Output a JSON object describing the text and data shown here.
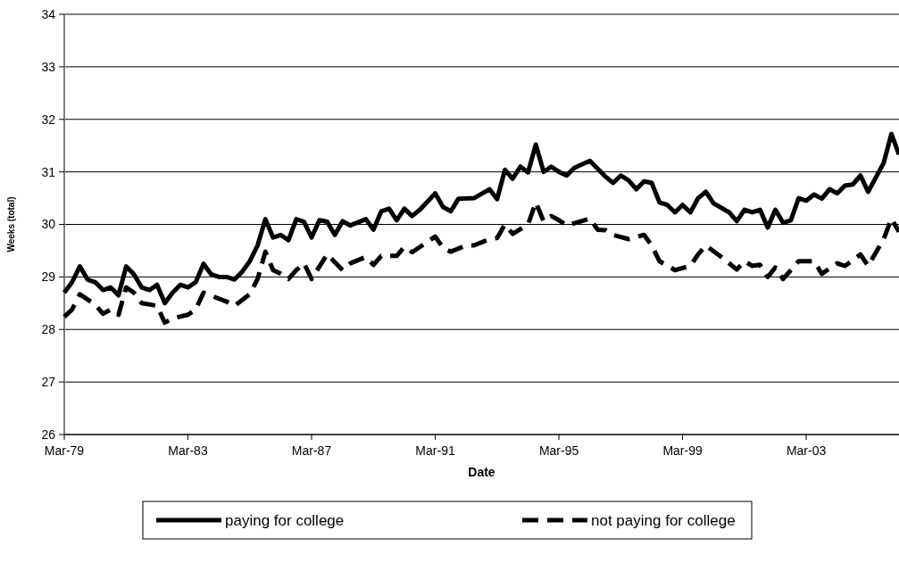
{
  "chart_data": {
    "type": "line",
    "xlabel": "Date",
    "ylabel": "Weeks (total)",
    "xlim": [
      "1979-03",
      "2006-03"
    ],
    "xticks": [
      {
        "value": "1979-03",
        "label": "Mar-79"
      },
      {
        "value": "1983-03",
        "label": "Mar-83"
      },
      {
        "value": "1987-03",
        "label": "Mar-87"
      },
      {
        "value": "1991-03",
        "label": "Mar-91"
      },
      {
        "value": "1995-03",
        "label": "Mar-95"
      },
      {
        "value": "1999-03",
        "label": "Mar-99"
      },
      {
        "value": "2003-03",
        "label": "Mar-03"
      }
    ],
    "ylim": [
      26,
      34
    ],
    "yticks": [
      26,
      27,
      28,
      29,
      30,
      31,
      32,
      33,
      34
    ],
    "grid": "y",
    "legend": "bottom",
    "series": [
      {
        "name": "paying for college",
        "color": "#000000",
        "line_style": "solid",
        "x": [
          "1979-03",
          "1979-06",
          "1979-09",
          "1979-12",
          "1980-03",
          "1980-06",
          "1980-09",
          "1980-12",
          "1981-03",
          "1981-06",
          "1981-09",
          "1981-12",
          "1982-03",
          "1982-06",
          "1982-09",
          "1982-12",
          "1983-03",
          "1983-06",
          "1983-09",
          "1983-12",
          "1984-03",
          "1984-06",
          "1984-09",
          "1984-12",
          "1985-03",
          "1985-06",
          "1985-09",
          "1985-12",
          "1986-03",
          "1986-06",
          "1986-09",
          "1986-12",
          "1987-03",
          "1987-06",
          "1987-09",
          "1987-12",
          "1988-03",
          "1988-06",
          "1988-12",
          "1989-03",
          "1989-06",
          "1989-09",
          "1989-12",
          "1990-03",
          "1990-06",
          "1990-09",
          "1991-03",
          "1991-06",
          "1991-09",
          "1991-12",
          "1992-06",
          "1992-12",
          "1993-03",
          "1993-06",
          "1993-09",
          "1993-12",
          "1994-03",
          "1994-06",
          "1994-09",
          "1994-12",
          "1995-03",
          "1995-06",
          "1995-09",
          "1996-03",
          "1996-09",
          "1996-12",
          "1997-03",
          "1997-06",
          "1997-09",
          "1997-12",
          "1998-03",
          "1998-06",
          "1998-09",
          "1998-12",
          "1999-03",
          "1999-06",
          "1999-09",
          "1999-12",
          "2000-03",
          "2000-09",
          "2000-12",
          "2001-03",
          "2001-06",
          "2001-09",
          "2001-12",
          "2002-03",
          "2002-06",
          "2002-09",
          "2002-12",
          "2003-03",
          "2003-06",
          "2003-09",
          "2003-12",
          "2004-03",
          "2004-06",
          "2004-09",
          "2004-12",
          "2005-03",
          "2005-09",
          "2005-12",
          "2006-03"
        ],
        "values": [
          28.7,
          28.9,
          29.2,
          28.95,
          28.9,
          28.75,
          28.8,
          28.65,
          29.2,
          29.05,
          28.8,
          28.75,
          28.85,
          28.5,
          28.7,
          28.85,
          28.8,
          28.9,
          29.25,
          29.05,
          29.0,
          29.0,
          28.95,
          29.1,
          29.3,
          29.6,
          30.1,
          29.75,
          29.8,
          29.7,
          30.1,
          30.05,
          29.75,
          30.08,
          30.05,
          29.8,
          30.06,
          29.98,
          30.1,
          29.9,
          30.25,
          30.3,
          30.08,
          30.3,
          30.16,
          30.28,
          30.59,
          30.33,
          30.25,
          30.49,
          30.5,
          30.67,
          30.48,
          31.04,
          30.87,
          31.1,
          30.99,
          31.52,
          31.0,
          31.1,
          31.0,
          30.93,
          31.08,
          31.21,
          30.91,
          30.79,
          30.93,
          30.84,
          30.67,
          30.82,
          30.79,
          30.42,
          30.37,
          30.23,
          30.37,
          30.23,
          30.5,
          30.62,
          30.4,
          30.23,
          30.06,
          30.28,
          30.23,
          30.28,
          29.94,
          30.28,
          30.03,
          30.08,
          30.5,
          30.45,
          30.57,
          30.49,
          30.67,
          30.59,
          30.74,
          30.76,
          30.93,
          30.62,
          31.17,
          31.72,
          31.33
        ]
      },
      {
        "name": "not paying for college",
        "color": "#000000",
        "line_style": "dashed",
        "x": [
          "1979-03",
          "1979-06",
          "1979-09",
          "1980-03",
          "1980-06",
          "1980-09",
          "1980-12",
          "1981-03",
          "1981-06",
          "1981-09",
          "1982-03",
          "1982-06",
          "1982-09",
          "1983-03",
          "1983-06",
          "1983-09",
          "1984-06",
          "1984-09",
          "1985-03",
          "1985-06",
          "1985-09",
          "1985-12",
          "1986-03",
          "1986-06",
          "1986-09",
          "1986-12",
          "1987-03",
          "1987-09",
          "1988-03",
          "1988-06",
          "1988-12",
          "1989-03",
          "1989-06",
          "1989-12",
          "1990-03",
          "1990-06",
          "1991-03",
          "1991-06",
          "1991-09",
          "1992-03",
          "1992-06",
          "1992-12",
          "1993-03",
          "1993-06",
          "1993-09",
          "1994-03",
          "1994-06",
          "1994-09",
          "1994-12",
          "1995-03",
          "1995-06",
          "1996-03",
          "1996-06",
          "1996-09",
          "1996-12",
          "1997-06",
          "1997-12",
          "1998-03",
          "1998-06",
          "1998-12",
          "1999-06",
          "1999-09",
          "1999-12",
          "2000-06",
          "2000-12",
          "2001-03",
          "2001-06",
          "2001-09",
          "2001-12",
          "2002-03",
          "2002-06",
          "2002-12",
          "2003-06",
          "2003-09",
          "2004-03",
          "2004-06",
          "2004-12",
          "2005-03",
          "2005-09",
          "2005-12",
          "2006-03"
        ],
        "values": [
          28.24,
          28.38,
          28.67,
          28.47,
          28.3,
          28.38,
          28.28,
          28.8,
          28.7,
          28.5,
          28.45,
          28.13,
          28.21,
          28.28,
          28.38,
          28.7,
          28.53,
          28.45,
          28.67,
          28.96,
          29.48,
          29.13,
          29.06,
          28.96,
          29.13,
          29.26,
          28.96,
          29.43,
          29.13,
          29.26,
          29.38,
          29.23,
          29.4,
          29.4,
          29.57,
          29.47,
          29.77,
          29.55,
          29.48,
          29.6,
          29.6,
          29.72,
          29.74,
          30.0,
          29.82,
          30.0,
          30.42,
          30.06,
          30.16,
          30.08,
          29.98,
          30.11,
          29.9,
          29.89,
          29.8,
          29.72,
          29.8,
          29.6,
          29.3,
          29.13,
          29.21,
          29.43,
          29.6,
          29.38,
          29.14,
          29.3,
          29.21,
          29.23,
          29.0,
          29.18,
          28.96,
          29.3,
          29.3,
          29.06,
          29.26,
          29.21,
          29.43,
          29.21,
          29.72,
          30.11,
          29.86
        ]
      }
    ]
  }
}
